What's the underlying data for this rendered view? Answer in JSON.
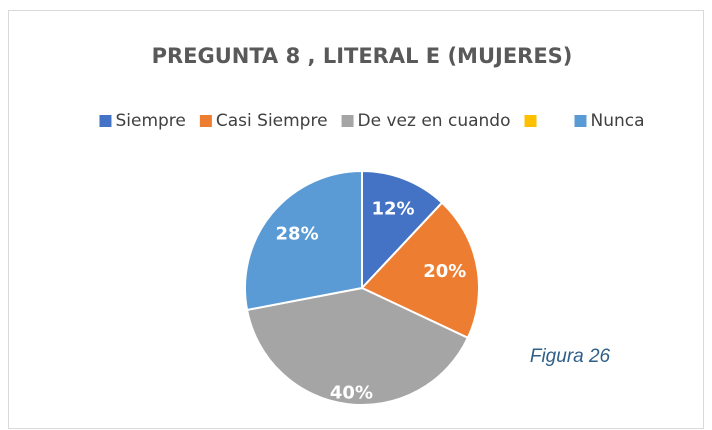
{
  "chart_data": {
    "type": "pie",
    "title": "PREGUNTA 8 , LITERAL E (MUJERES)",
    "categories": [
      "Siempre",
      "Casi Siempre",
      "De vez en cuando",
      null,
      "Nunca"
    ],
    "values": [
      12,
      20,
      40,
      0,
      28
    ],
    "value_labels": [
      "12%",
      "20%",
      "40%",
      null,
      "28%"
    ],
    "colors": [
      "#4472c4",
      "#ed7d31",
      "#a5a5a5",
      "#ffc000",
      "#5b9bd5"
    ],
    "legend": "top",
    "annotation": "Figura 26"
  }
}
